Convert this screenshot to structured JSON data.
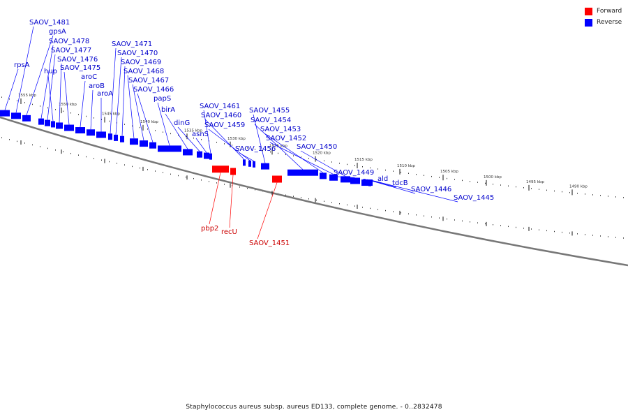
{
  "caption": "Staphylococcus aureus subsp. aureus ED133, complete genome. - 0..2832478",
  "legend": [
    {
      "label": "Forward",
      "color": "#ff0000"
    },
    {
      "label": "Reverse",
      "color": "#0000ff"
    }
  ],
  "colors": {
    "forward": "#ff0000",
    "forward_label": "#cc0000",
    "reverse": "#0000ff",
    "reverse_label": "#0000cc",
    "backbone": "#777777"
  },
  "ticks": [
    "1555 kbp",
    "1550 kbp",
    "1545 kbp",
    "1540 kbp",
    "1535 kbp",
    "1530 kbp",
    "1525 kbp",
    "1520 kbp",
    "1515 kbp",
    "1510 kbp",
    "1505 kbp",
    "1500 kbp",
    "1495 kbp",
    "1490 kbp"
  ],
  "reverse_genes": [
    "rpsA",
    "SAOV_1481",
    "gpsA",
    "SAOV_1478",
    "SAOV_1477",
    "hup",
    "SAOV_1476",
    "SAOV_1475",
    "aroC",
    "aroB",
    "aroA",
    "SAOV_1471",
    "SAOV_1470",
    "SAOV_1469",
    "SAOV_1468",
    "SAOV_1467",
    "SAOV_1466",
    "papS",
    "birA",
    "dinG",
    "asnS",
    "SAOV_1461",
    "SAOV_1460",
    "SAOV_1459",
    "SAOV_1456",
    "SAOV_1455",
    "SAOV_1454",
    "SAOV_1453",
    "SAOV_1452",
    "SAOV_1450",
    "SAOV_1449",
    "ald",
    "tdcB",
    "SAOV_1446",
    "SAOV_1445"
  ],
  "forward_genes": [
    "pbp2",
    "recU",
    "SAOV_1451"
  ]
}
